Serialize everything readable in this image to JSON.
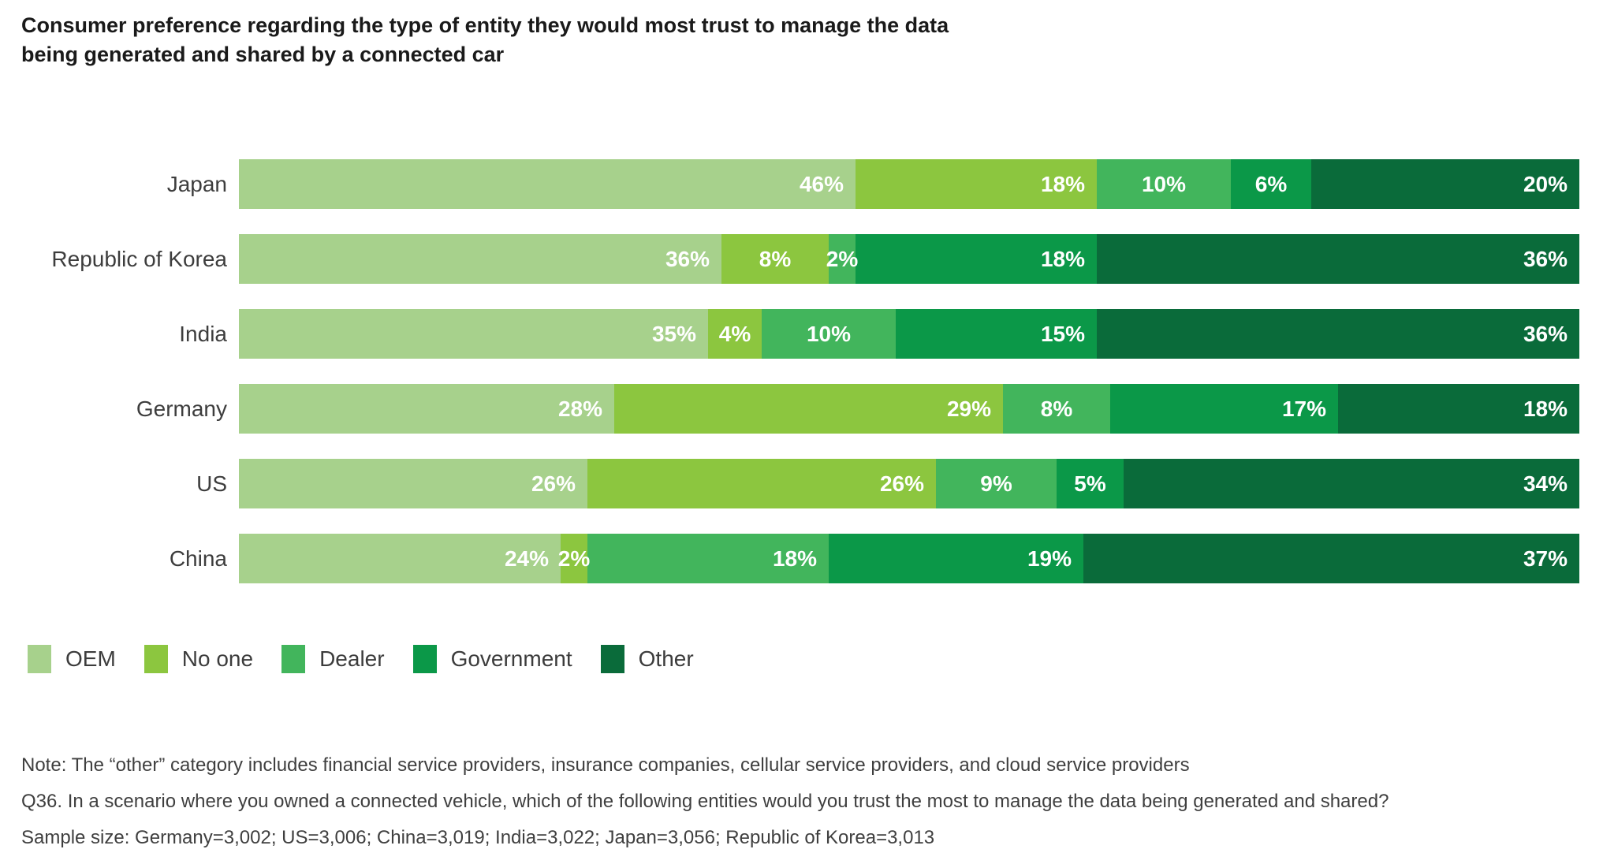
{
  "title": {
    "line1": "Consumer preference regarding the type of entity they would most trust to manage the data",
    "line2": "being generated and shared by a connected car"
  },
  "chart_data": {
    "type": "bar",
    "stacked": true,
    "orientation": "horizontal",
    "title": "Consumer preference regarding the type of entity they would most trust to manage the data being generated and shared by a connected car",
    "categories": [
      "Japan",
      "Republic of Korea",
      "India",
      "Germany",
      "US",
      "China"
    ],
    "series": [
      {
        "name": "OEM",
        "color": "#a7d18c",
        "values": [
          46,
          36,
          35,
          28,
          26,
          24
        ]
      },
      {
        "name": "No one",
        "color": "#8cc63f",
        "values": [
          18,
          8,
          4,
          29,
          26,
          2
        ]
      },
      {
        "name": "Dealer",
        "color": "#42b55c",
        "values": [
          10,
          2,
          10,
          8,
          9,
          18
        ]
      },
      {
        "name": "Government",
        "color": "#0b9848",
        "values": [
          6,
          18,
          15,
          17,
          5,
          19
        ]
      },
      {
        "name": "Other",
        "color": "#0a6b3a",
        "values": [
          20,
          36,
          36,
          18,
          34,
          37
        ]
      }
    ],
    "value_suffix": "%",
    "xlim": [
      0,
      100
    ],
    "grid": false,
    "legend_position": "bottom-left",
    "label_color": "#ffffff",
    "center_label_threshold": 10
  },
  "notes": {
    "note": "Note: The “other” category includes financial service providers, insurance companies, cellular service providers, and cloud service providers",
    "question": "Q36. In a scenario where you owned a connected vehicle, which of the following entities would you trust the most to manage the data being generated and shared?",
    "sample": "Sample size: Germany=3,002; US=3,006; China=3,019; India=3,022; Japan=3,056; Republic of Korea=3,013"
  }
}
